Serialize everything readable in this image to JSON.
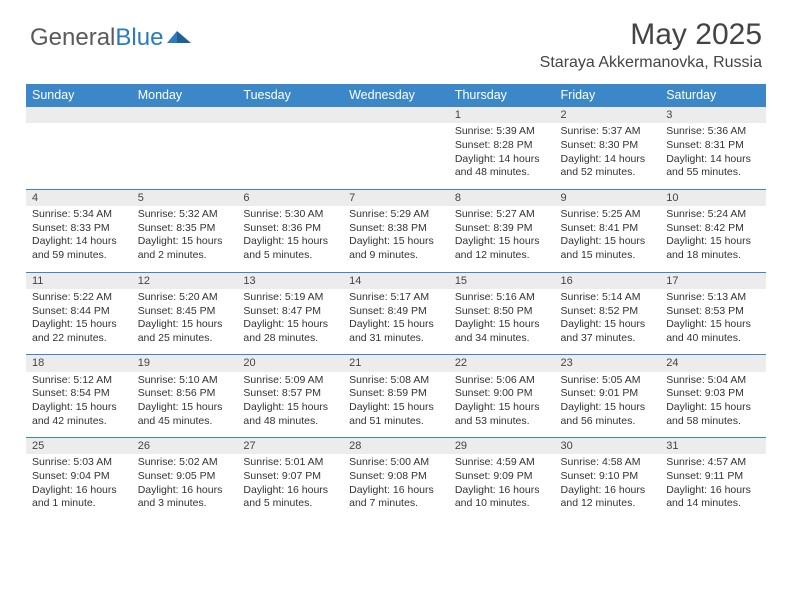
{
  "brand": {
    "part1": "General",
    "part2": "Blue"
  },
  "title": "May 2025",
  "location": "Staraya Akkermanovka, Russia",
  "colors": {
    "header_bg": "#3b87c8",
    "header_text": "#ffffff",
    "daynum_bg": "#ececec",
    "border": "#3b87c8",
    "text": "#333333",
    "logo_gray": "#5a5a5a",
    "logo_blue": "#2a7bbf",
    "background": "#ffffff"
  },
  "weekdays": [
    "Sunday",
    "Monday",
    "Tuesday",
    "Wednesday",
    "Thursday",
    "Friday",
    "Saturday"
  ],
  "weeks": [
    [
      null,
      null,
      null,
      null,
      {
        "n": "1",
        "sr": "5:39 AM",
        "ss": "8:28 PM",
        "dl": "14 hours and 48 minutes."
      },
      {
        "n": "2",
        "sr": "5:37 AM",
        "ss": "8:30 PM",
        "dl": "14 hours and 52 minutes."
      },
      {
        "n": "3",
        "sr": "5:36 AM",
        "ss": "8:31 PM",
        "dl": "14 hours and 55 minutes."
      }
    ],
    [
      {
        "n": "4",
        "sr": "5:34 AM",
        "ss": "8:33 PM",
        "dl": "14 hours and 59 minutes."
      },
      {
        "n": "5",
        "sr": "5:32 AM",
        "ss": "8:35 PM",
        "dl": "15 hours and 2 minutes."
      },
      {
        "n": "6",
        "sr": "5:30 AM",
        "ss": "8:36 PM",
        "dl": "15 hours and 5 minutes."
      },
      {
        "n": "7",
        "sr": "5:29 AM",
        "ss": "8:38 PM",
        "dl": "15 hours and 9 minutes."
      },
      {
        "n": "8",
        "sr": "5:27 AM",
        "ss": "8:39 PM",
        "dl": "15 hours and 12 minutes."
      },
      {
        "n": "9",
        "sr": "5:25 AM",
        "ss": "8:41 PM",
        "dl": "15 hours and 15 minutes."
      },
      {
        "n": "10",
        "sr": "5:24 AM",
        "ss": "8:42 PM",
        "dl": "15 hours and 18 minutes."
      }
    ],
    [
      {
        "n": "11",
        "sr": "5:22 AM",
        "ss": "8:44 PM",
        "dl": "15 hours and 22 minutes."
      },
      {
        "n": "12",
        "sr": "5:20 AM",
        "ss": "8:45 PM",
        "dl": "15 hours and 25 minutes."
      },
      {
        "n": "13",
        "sr": "5:19 AM",
        "ss": "8:47 PM",
        "dl": "15 hours and 28 minutes."
      },
      {
        "n": "14",
        "sr": "5:17 AM",
        "ss": "8:49 PM",
        "dl": "15 hours and 31 minutes."
      },
      {
        "n": "15",
        "sr": "5:16 AM",
        "ss": "8:50 PM",
        "dl": "15 hours and 34 minutes."
      },
      {
        "n": "16",
        "sr": "5:14 AM",
        "ss": "8:52 PM",
        "dl": "15 hours and 37 minutes."
      },
      {
        "n": "17",
        "sr": "5:13 AM",
        "ss": "8:53 PM",
        "dl": "15 hours and 40 minutes."
      }
    ],
    [
      {
        "n": "18",
        "sr": "5:12 AM",
        "ss": "8:54 PM",
        "dl": "15 hours and 42 minutes."
      },
      {
        "n": "19",
        "sr": "5:10 AM",
        "ss": "8:56 PM",
        "dl": "15 hours and 45 minutes."
      },
      {
        "n": "20",
        "sr": "5:09 AM",
        "ss": "8:57 PM",
        "dl": "15 hours and 48 minutes."
      },
      {
        "n": "21",
        "sr": "5:08 AM",
        "ss": "8:59 PM",
        "dl": "15 hours and 51 minutes."
      },
      {
        "n": "22",
        "sr": "5:06 AM",
        "ss": "9:00 PM",
        "dl": "15 hours and 53 minutes."
      },
      {
        "n": "23",
        "sr": "5:05 AM",
        "ss": "9:01 PM",
        "dl": "15 hours and 56 minutes."
      },
      {
        "n": "24",
        "sr": "5:04 AM",
        "ss": "9:03 PM",
        "dl": "15 hours and 58 minutes."
      }
    ],
    [
      {
        "n": "25",
        "sr": "5:03 AM",
        "ss": "9:04 PM",
        "dl": "16 hours and 1 minute."
      },
      {
        "n": "26",
        "sr": "5:02 AM",
        "ss": "9:05 PM",
        "dl": "16 hours and 3 minutes."
      },
      {
        "n": "27",
        "sr": "5:01 AM",
        "ss": "9:07 PM",
        "dl": "16 hours and 5 minutes."
      },
      {
        "n": "28",
        "sr": "5:00 AM",
        "ss": "9:08 PM",
        "dl": "16 hours and 7 minutes."
      },
      {
        "n": "29",
        "sr": "4:59 AM",
        "ss": "9:09 PM",
        "dl": "16 hours and 10 minutes."
      },
      {
        "n": "30",
        "sr": "4:58 AM",
        "ss": "9:10 PM",
        "dl": "16 hours and 12 minutes."
      },
      {
        "n": "31",
        "sr": "4:57 AM",
        "ss": "9:11 PM",
        "dl": "16 hours and 14 minutes."
      }
    ]
  ],
  "labels": {
    "sunrise": "Sunrise:",
    "sunset": "Sunset:",
    "daylight": "Daylight:"
  }
}
